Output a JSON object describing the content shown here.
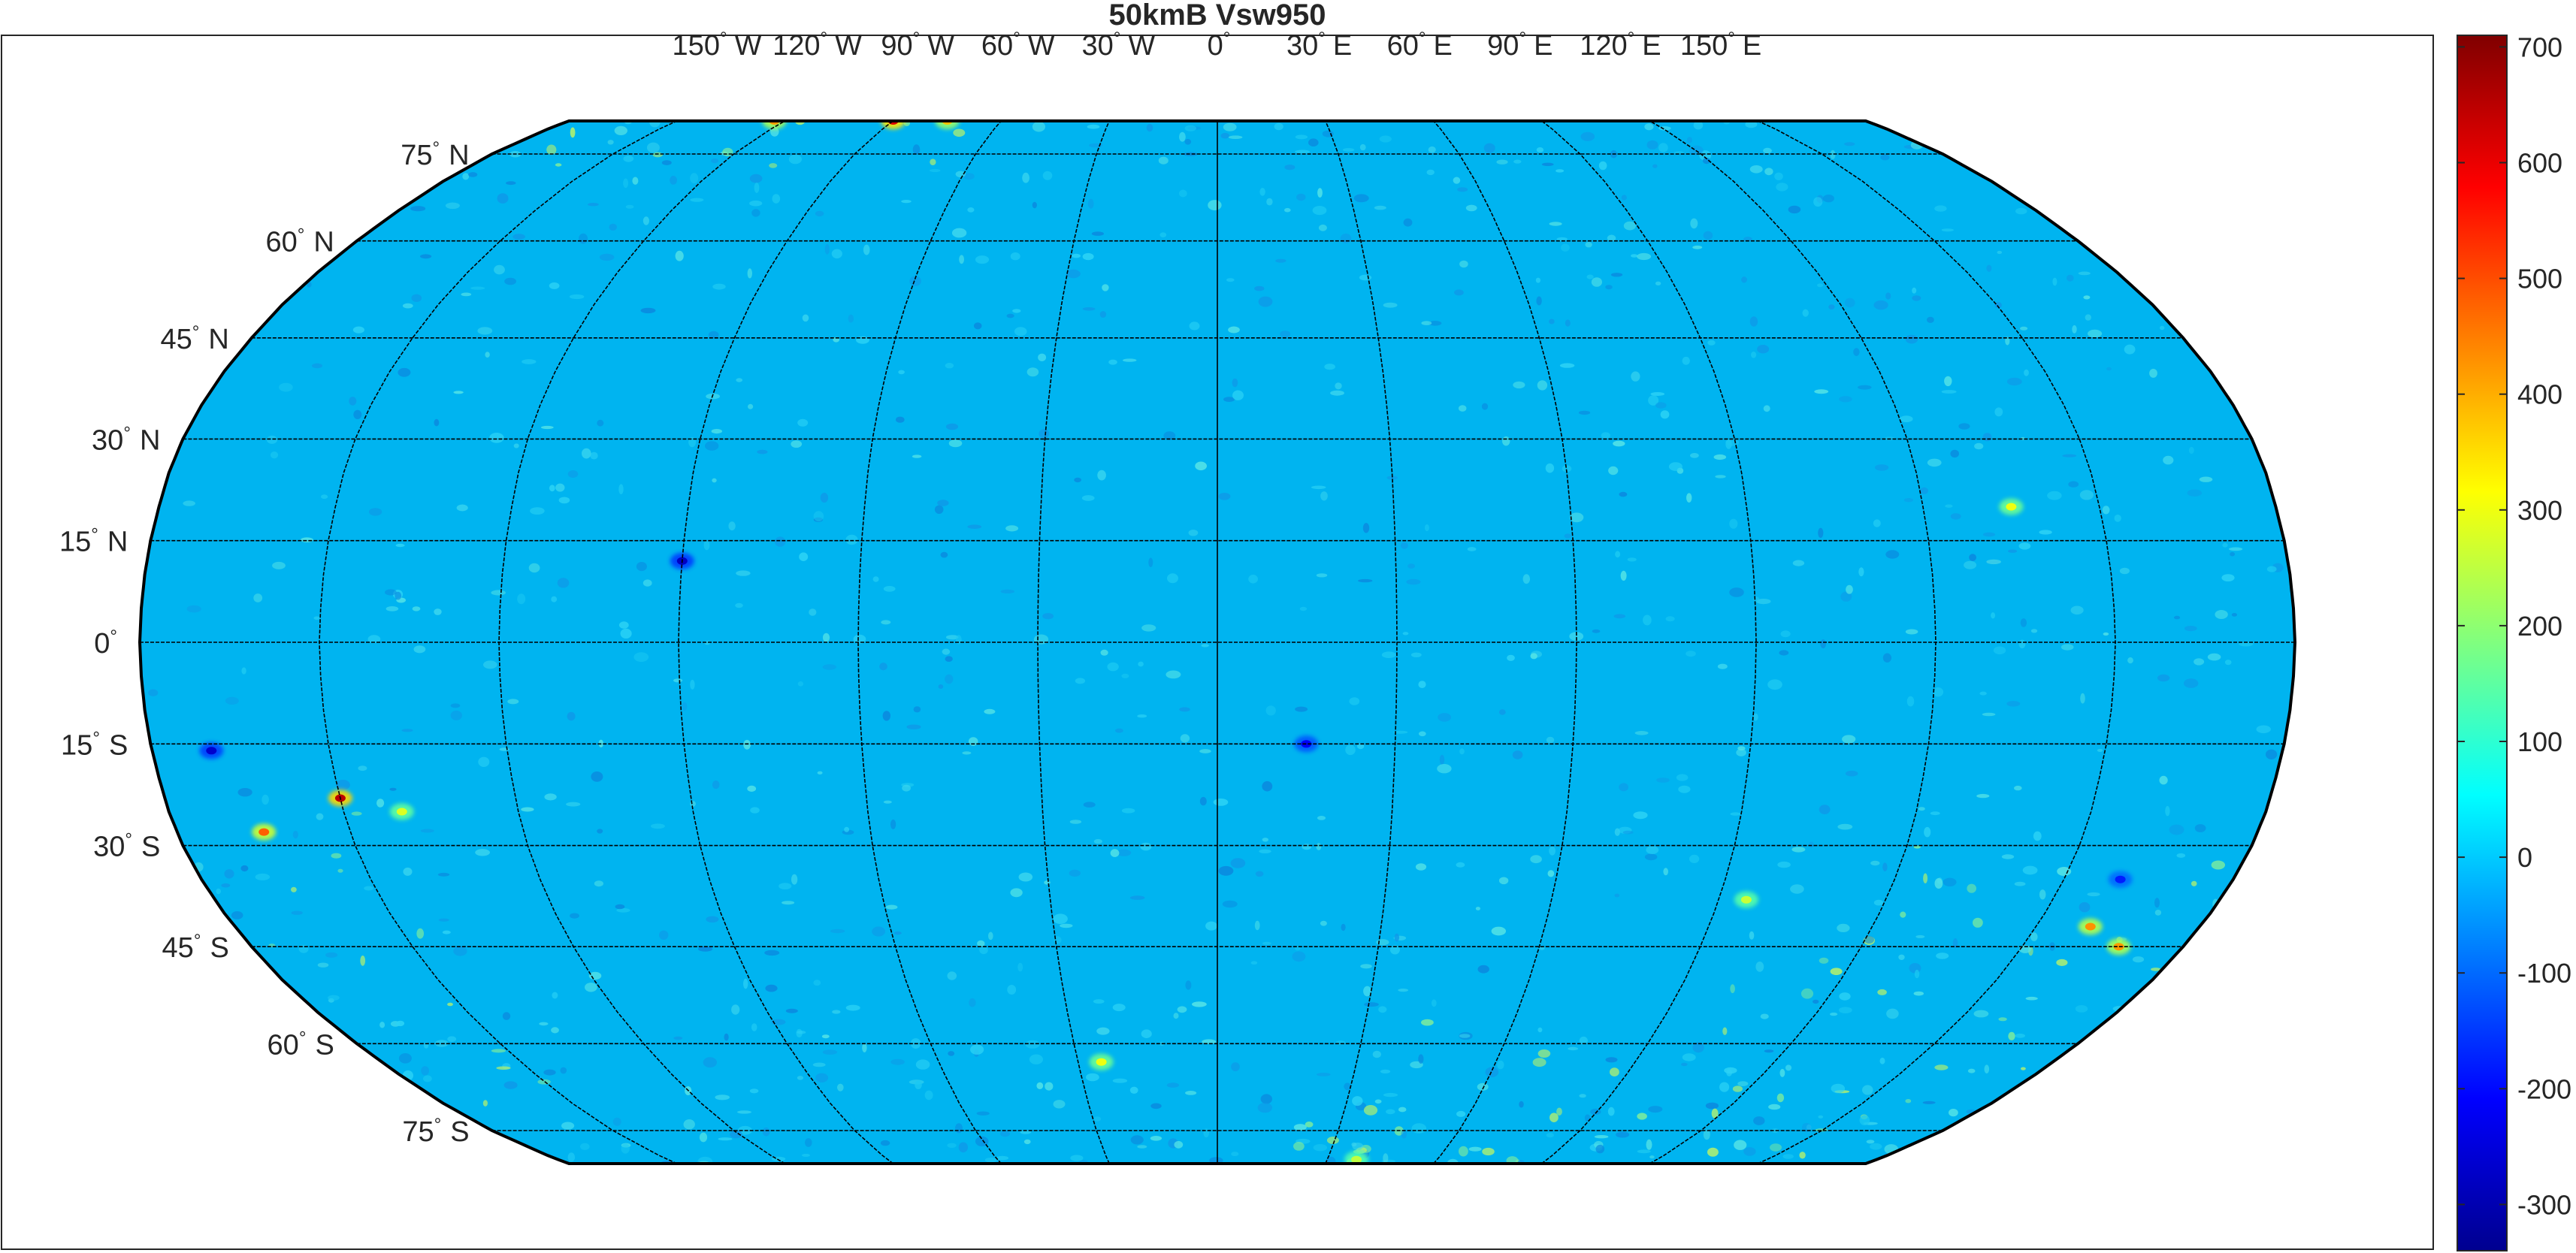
{
  "title": "50kmB Vsw950",
  "projection": "Robinson",
  "lon_labels": [
    {
      "deg": "150",
      "dir": "W",
      "lon": -150
    },
    {
      "deg": "120",
      "dir": "W",
      "lon": -120
    },
    {
      "deg": "90",
      "dir": "W",
      "lon": -90
    },
    {
      "deg": "60",
      "dir": "W",
      "lon": -60
    },
    {
      "deg": "30",
      "dir": "W",
      "lon": -30
    },
    {
      "deg": "0",
      "dir": "",
      "lon": 0
    },
    {
      "deg": "30",
      "dir": "E",
      "lon": 30
    },
    {
      "deg": "60",
      "dir": "E",
      "lon": 60
    },
    {
      "deg": "90",
      "dir": "E",
      "lon": 90
    },
    {
      "deg": "120",
      "dir": "E",
      "lon": 120
    },
    {
      "deg": "150",
      "dir": "E",
      "lon": 150
    }
  ],
  "lat_labels": [
    {
      "deg": "75",
      "dir": "N",
      "lat": 75
    },
    {
      "deg": "60",
      "dir": "N",
      "lat": 60
    },
    {
      "deg": "45",
      "dir": "N",
      "lat": 45
    },
    {
      "deg": "30",
      "dir": "N",
      "lat": 30
    },
    {
      "deg": "15",
      "dir": "N",
      "lat": 15
    },
    {
      "deg": "0",
      "dir": "",
      "lat": 0
    },
    {
      "deg": "15",
      "dir": "S",
      "lat": -15
    },
    {
      "deg": "30",
      "dir": "S",
      "lat": -30
    },
    {
      "deg": "45",
      "dir": "S",
      "lat": -45
    },
    {
      "deg": "60",
      "dir": "S",
      "lat": -60
    },
    {
      "deg": "75",
      "dir": "S",
      "lat": -75
    }
  ],
  "colorbar": {
    "colormap": "jet",
    "min": -340,
    "max": 710,
    "ticks": [
      "700",
      "600",
      "500",
      "400",
      "300",
      "200",
      "100",
      "0",
      "-100",
      "-200",
      "-300"
    ],
    "tick_values": [
      700,
      600,
      500,
      400,
      300,
      200,
      100,
      0,
      -100,
      -200,
      -300
    ]
  },
  "colors": {
    "background_field": "#00B4F0",
    "frame": "#262626",
    "coastline": "#000000",
    "graticule": "#000000"
  },
  "anomalies": [
    {
      "lon": -90,
      "lat": 82,
      "value": 620
    },
    {
      "lon": -123,
      "lat": 82,
      "value": 420
    },
    {
      "lon": -75,
      "lat": 82,
      "value": 380
    },
    {
      "lon": -150,
      "lat": -23,
      "value": 650
    },
    {
      "lon": -165,
      "lat": -28,
      "value": 480
    },
    {
      "lon": -140,
      "lat": -25,
      "value": 280
    },
    {
      "lon": -170,
      "lat": -16,
      "value": -260
    },
    {
      "lon": -90,
      "lat": 12,
      "value": -270
    },
    {
      "lon": 15,
      "lat": -15,
      "value": -220
    },
    {
      "lon": 160,
      "lat": -42,
      "value": 430
    },
    {
      "lon": 168,
      "lat": -45,
      "value": 420
    },
    {
      "lon": 160,
      "lat": -35,
      "value": -180
    },
    {
      "lon": 135,
      "lat": 20,
      "value": 300
    },
    {
      "lon": 95,
      "lat": -38,
      "value": 260
    },
    {
      "lon": -25,
      "lat": -63,
      "value": 300
    },
    {
      "lon": 38,
      "lat": -81,
      "value": 250
    }
  ]
}
